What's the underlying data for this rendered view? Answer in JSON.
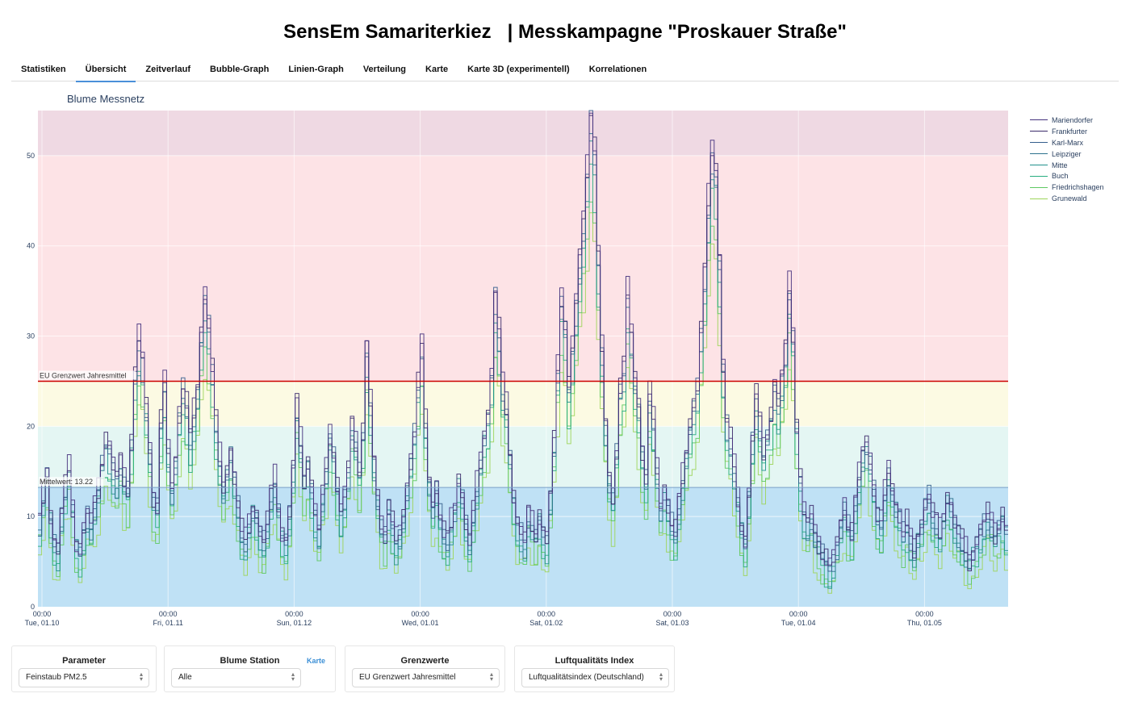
{
  "page": {
    "title": "SensEm Samariterkiez   | Messkampagne \"Proskauer Straße\""
  },
  "tabs": [
    {
      "label": "Statistiken",
      "active": false
    },
    {
      "label": "Übersicht",
      "active": true
    },
    {
      "label": "Zeitverlauf",
      "active": false
    },
    {
      "label": "Bubble-Graph",
      "active": false
    },
    {
      "label": "Linien-Graph",
      "active": false
    },
    {
      "label": "Verteilung",
      "active": false
    },
    {
      "label": "Karte",
      "active": false
    },
    {
      "label": "Karte 3D (experimentell)",
      "active": false
    },
    {
      "label": "Korrelationen",
      "active": false
    }
  ],
  "chart_title": "Blume Messnetz",
  "chart_data": {
    "type": "line",
    "line_shape": "step",
    "ylim": [
      0,
      55
    ],
    "y_ticks": [
      0,
      10,
      20,
      30,
      40,
      50
    ],
    "x_ticks": [
      {
        "time": "00:00",
        "date": "Tue, 01.10"
      },
      {
        "time": "00:00",
        "date": "Fri, 01.11"
      },
      {
        "time": "00:00",
        "date": "Sun, 01.12"
      },
      {
        "time": "00:00",
        "date": "Wed, 01.01"
      },
      {
        "time": "00:00",
        "date": "Sat, 01.02"
      },
      {
        "time": "00:00",
        "date": "Sat, 01.03"
      },
      {
        "time": "00:00",
        "date": "Tue, 01.04"
      },
      {
        "time": "00:00",
        "date": "Thu, 01.05"
      }
    ],
    "bands": [
      {
        "from": 0,
        "to": 13.22,
        "color": "#bfe1f5"
      },
      {
        "from": 13.22,
        "to": 20,
        "color": "#e4f6f3"
      },
      {
        "from": 20,
        "to": 25,
        "color": "#fcfae3"
      },
      {
        "from": 25,
        "to": 50,
        "color": "#fde3e6"
      },
      {
        "from": 50,
        "to": 55,
        "color": "#efd9e3"
      }
    ],
    "limit_line": {
      "value": 25,
      "label": "EU Grenzwert Jahresmittel",
      "color": "#cc0000"
    },
    "mean_line": {
      "value": 13.22,
      "label": "Mittelwert: 13.22",
      "color": "#7aa0c8"
    },
    "legend_position": "top-right",
    "series": [
      {
        "name": "Mariendorfer",
        "color": "#46327e",
        "offset": 0.8
      },
      {
        "name": "Frankfurter",
        "color": "#3b2a6a",
        "offset": 0.5
      },
      {
        "name": "Karl-Marx",
        "color": "#355f8d",
        "offset": 0.0
      },
      {
        "name": "Leipziger",
        "color": "#2c728e",
        "offset": -0.6
      },
      {
        "name": "Mitte",
        "color": "#21918c",
        "offset": -1.4
      },
      {
        "name": "Buch",
        "color": "#28ae80",
        "offset": -2.4
      },
      {
        "name": "Friedrichshagen",
        "color": "#5ec962",
        "offset": -3.5
      },
      {
        "name": "Grunewald",
        "color": "#9dd55a",
        "offset": -4.8
      }
    ],
    "base_profile": [
      9,
      12,
      15,
      10,
      7,
      6,
      10,
      13,
      15,
      11,
      7,
      6,
      8,
      10,
      9,
      11,
      13,
      16,
      18,
      17,
      15,
      14,
      16,
      14,
      13,
      18,
      25,
      29,
      27,
      22,
      17,
      12,
      11,
      20,
      24,
      17,
      13,
      16,
      21,
      24,
      22,
      18,
      21,
      24,
      30,
      34,
      31,
      26,
      20,
      16,
      13,
      15,
      17,
      14,
      11,
      8,
      7,
      9,
      11,
      10,
      8,
      7,
      9,
      12,
      14,
      11,
      8,
      7,
      10,
      15,
      22,
      18,
      14,
      16,
      13,
      10,
      8,
      12,
      15,
      19,
      17,
      13,
      10,
      12,
      15,
      20,
      18,
      15,
      19,
      28,
      22,
      16,
      12,
      9,
      8,
      11,
      9,
      7,
      8,
      10,
      13,
      16,
      19,
      24,
      28,
      20,
      14,
      11,
      13,
      10,
      8,
      7,
      9,
      11,
      14,
      12,
      9,
      7,
      10,
      13,
      16,
      19,
      21,
      25,
      34,
      30,
      24,
      22,
      17,
      12,
      9,
      8,
      7,
      10,
      9,
      8,
      10,
      8,
      7,
      12,
      18,
      26,
      34,
      31,
      24,
      28,
      33,
      38,
      42,
      48,
      54,
      50,
      38,
      28,
      20,
      14,
      12,
      17,
      24,
      26,
      34,
      30,
      25,
      22,
      17,
      14,
      23,
      20,
      15,
      11,
      13,
      11,
      9,
      8,
      11,
      14,
      17,
      20,
      22,
      24,
      30,
      36,
      44,
      50,
      48,
      38,
      26,
      20,
      18,
      15,
      12,
      9,
      7,
      12,
      18,
      23,
      20,
      17,
      19,
      21,
      24,
      22,
      25,
      28,
      35,
      30,
      20,
      14,
      10,
      9,
      10,
      8,
      7,
      6,
      5,
      4,
      5,
      7,
      9,
      11,
      9,
      8,
      11,
      14,
      17,
      18,
      16,
      13,
      10,
      9,
      12,
      15,
      13,
      11,
      10,
      8,
      9,
      7,
      6,
      8,
      9,
      11,
      12,
      10,
      9,
      8,
      10,
      12,
      11,
      9,
      8,
      7,
      6,
      5,
      6,
      7,
      8,
      9,
      10,
      9,
      8,
      9,
      10,
      8
    ]
  },
  "legend_items": [
    "Mariendorfer",
    "Frankfurter",
    "Karl-Marx",
    "Leipziger",
    "Mitte",
    "Buch",
    "Friedrichshagen",
    "Grunewald"
  ],
  "controls": {
    "parameter": {
      "label": "Parameter",
      "value": "Feinstaub PM2.5"
    },
    "station": {
      "label": "Blume Station",
      "link": "Karte",
      "value": "Alle"
    },
    "limits": {
      "label": "Grenzwerte",
      "value": "EU Grenzwert Jahresmittel"
    },
    "aqi": {
      "label": "Luftqualitäts Index",
      "value": "Luftqualitätsindex (Deutschland)"
    }
  }
}
